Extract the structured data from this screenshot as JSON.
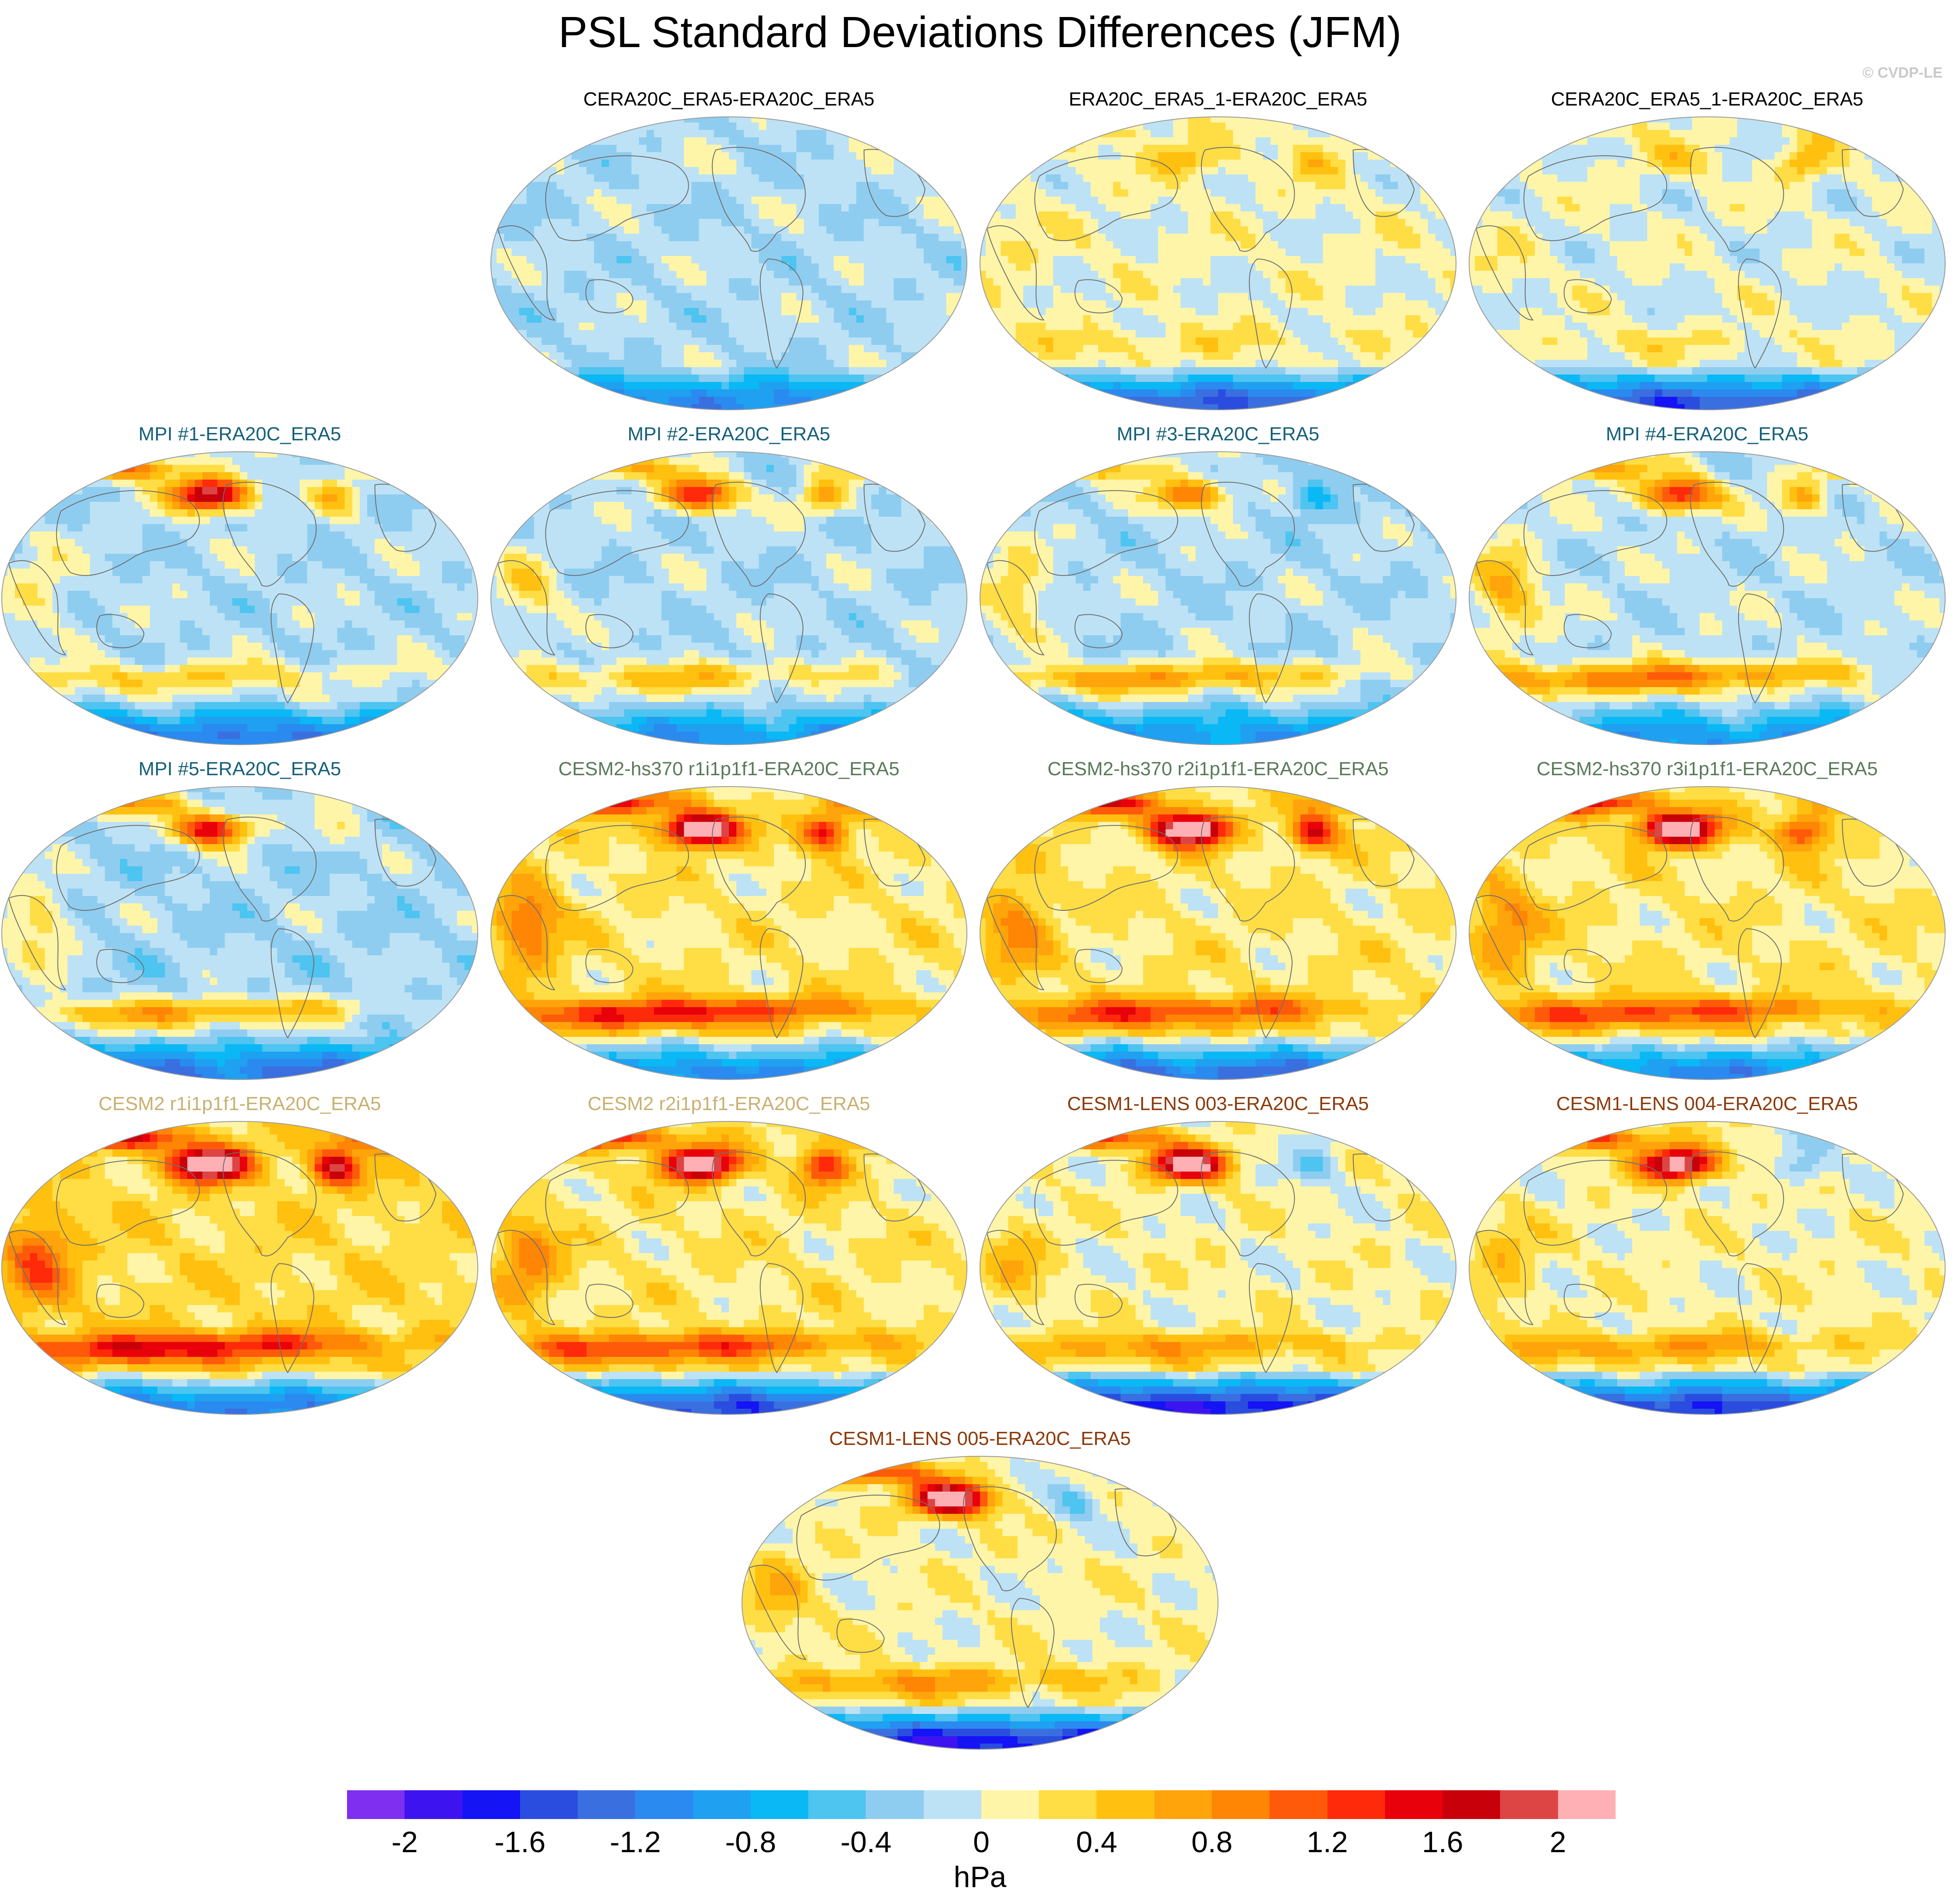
{
  "title": "PSL Standard Deviations Differences (JFM)",
  "copyright": "© CVDP-LE",
  "chart_data": {
    "type": "heatmap",
    "title": "PSL Standard Deviations Differences (JFM)",
    "colorbar": {
      "unit": "hPa",
      "tick_labels": [
        "-2",
        "-1.6",
        "-1.2",
        "-0.8",
        "-0.4",
        "0",
        "0.4",
        "0.8",
        "1.2",
        "1.6",
        "2"
      ],
      "colors": [
        "#7f2ff0",
        "#3d14f0",
        "#1414f5",
        "#2a4de0",
        "#3a6fe0",
        "#2a8af0",
        "#1fa0f0",
        "#0ab8f5",
        "#4ec4f0",
        "#8fcdf0",
        "#bde2f5",
        "#fff5a8",
        "#ffdd45",
        "#ffc010",
        "#ffa40a",
        "#ff8505",
        "#ff5a0a",
        "#ff2a0a",
        "#e8000a",
        "#c8000a",
        "#dd4444",
        "#ffb0b5"
      ]
    },
    "panels": [
      {
        "title": "CERA20C_ERA5-ERA20C_ERA5",
        "title_color": "#000000",
        "anomaly": {
          "npac": 0.1,
          "natl": 0.0,
          "south": -0.9,
          "band": 0.0,
          "trop": -0.15
        }
      },
      {
        "title": "ERA20C_ERA5_1-ERA20C_ERA5",
        "title_color": "#000000",
        "anomaly": {
          "npac": 0.5,
          "natl": 0.4,
          "south": -1.4,
          "band": 0.2,
          "trop": 0.05
        }
      },
      {
        "title": "CERA20C_ERA5_1-ERA20C_ERA5",
        "title_color": "#000000",
        "anomaly": {
          "npac": 0.4,
          "natl": 0.6,
          "south": -1.4,
          "band": 0.2,
          "trop": 0.0
        }
      },
      {
        "title": "MPI #1-ERA20C_ERA5",
        "title_color": "#15607a",
        "anomaly": {
          "npac": 2.2,
          "natl": 0.6,
          "south": -1.0,
          "band": 0.5,
          "trop": -0.15
        }
      },
      {
        "title": "MPI #2-ERA20C_ERA5",
        "title_color": "#15607a",
        "anomaly": {
          "npac": 1.6,
          "natl": 0.8,
          "south": -0.8,
          "band": 0.6,
          "trop": -0.15
        }
      },
      {
        "title": "MPI #3-ERA20C_ERA5",
        "title_color": "#15607a",
        "anomaly": {
          "npac": 1.2,
          "natl": -0.6,
          "south": -0.8,
          "band": 0.8,
          "trop": -0.15
        }
      },
      {
        "title": "MPI #4-ERA20C_ERA5",
        "title_color": "#15607a",
        "anomaly": {
          "npac": 1.6,
          "natl": 0.8,
          "south": -0.8,
          "band": 1.0,
          "trop": -0.1
        }
      },
      {
        "title": "MPI #5-ERA20C_ERA5",
        "title_color": "#15607a",
        "anomaly": {
          "npac": 1.8,
          "natl": 0.4,
          "south": -1.0,
          "band": 0.8,
          "trop": -0.2
        }
      },
      {
        "title": "CESM2-hs370 r1i1p1f1-ERA20C_ERA5",
        "title_color": "#5a7a5a",
        "anomaly": {
          "npac": 2.4,
          "natl": 1.4,
          "south": -1.2,
          "band": 1.2,
          "trop": 0.2
        }
      },
      {
        "title": "CESM2-hs370 r2i1p1f1-ERA20C_ERA5",
        "title_color": "#5a7a5a",
        "anomaly": {
          "npac": 2.4,
          "natl": 1.4,
          "south": -1.4,
          "band": 1.0,
          "trop": 0.2
        }
      },
      {
        "title": "CESM2-hs370 r3i1p1f1-ERA20C_ERA5",
        "title_color": "#5a7a5a",
        "anomaly": {
          "npac": 2.4,
          "natl": 1.2,
          "south": -1.2,
          "band": 1.0,
          "trop": 0.2
        }
      },
      {
        "title": "CESM2 r1i1p1f1-ERA20C_ERA5",
        "title_color": "#c8b070",
        "anomaly": {
          "npac": 2.4,
          "natl": 1.6,
          "south": -1.4,
          "band": 1.2,
          "trop": 0.3
        }
      },
      {
        "title": "CESM2 r2i1p1f1-ERA20C_ERA5",
        "title_color": "#c8b070",
        "anomaly": {
          "npac": 2.2,
          "natl": 1.2,
          "south": -1.6,
          "band": 1.0,
          "trop": 0.2
        }
      },
      {
        "title": "CESM1-LENS 003-ERA20C_ERA5",
        "title_color": "#8b3a0a",
        "anomaly": {
          "npac": 2.2,
          "natl": -0.6,
          "south": -1.8,
          "band": 0.6,
          "trop": 0.1
        }
      },
      {
        "title": "CESM1-LENS 004-ERA20C_ERA5",
        "title_color": "#8b3a0a",
        "anomaly": {
          "npac": 2.2,
          "natl": -0.6,
          "south": -1.6,
          "band": 0.6,
          "trop": 0.1
        }
      },
      {
        "title": "CESM1-LENS 005-ERA20C_ERA5",
        "title_color": "#8b3a0a",
        "anomaly": {
          "npac": 2.4,
          "natl": -0.6,
          "south": -1.8,
          "band": 0.6,
          "trop": 0.1
        }
      }
    ]
  }
}
